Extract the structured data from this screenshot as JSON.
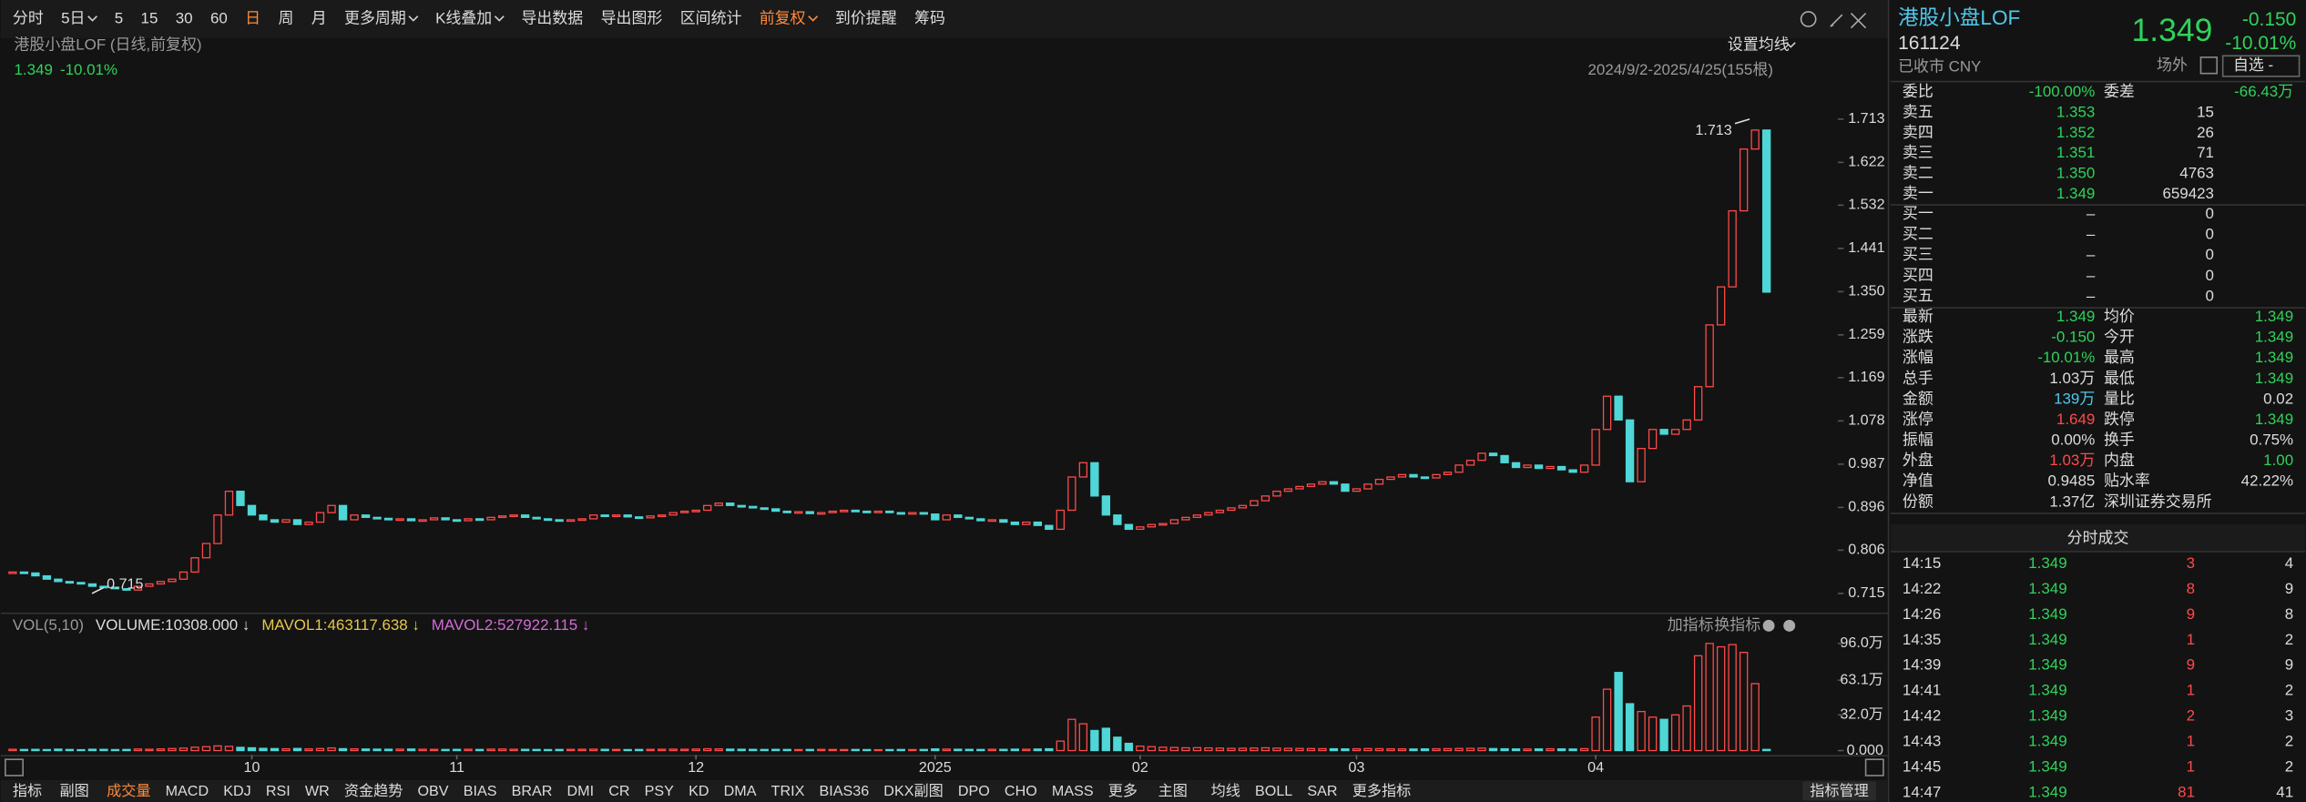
{
  "toolbar": {
    "items": [
      "分时",
      "5日",
      "5",
      "15",
      "30",
      "60",
      "日",
      "周",
      "月",
      "更多周期",
      "K线叠加",
      "导出数据",
      "导出图形",
      "区间统计",
      "前复权",
      "到价提醒",
      "筹码"
    ]
  },
  "chart_header": {
    "title": "港股小盘LOF (日线,前复权)",
    "price": "1.349",
    "change": "-10.01%",
    "ma_settings": "设置均线",
    "range": "2024/9/2-2025/4/25(155根)"
  },
  "chart_data": [
    {
      "type": "candlestick",
      "high_label": 1.713,
      "low_label": 0.715,
      "categories": [
        null,
        null,
        null,
        null,
        null,
        null,
        null,
        null,
        null,
        null,
        null,
        null,
        null,
        null,
        null,
        null,
        null,
        null,
        null,
        null,
        null,
        "10",
        null,
        null,
        null,
        null,
        null,
        null,
        null,
        null,
        null,
        null,
        null,
        null,
        null,
        null,
        null,
        null,
        null,
        "11",
        null,
        null,
        null,
        null,
        null,
        null,
        null,
        null,
        null,
        null,
        null,
        null,
        null,
        null,
        null,
        null,
        null,
        null,
        null,
        null,
        "12",
        null,
        null,
        null,
        null,
        null,
        null,
        null,
        null,
        null,
        null,
        null,
        null,
        null,
        null,
        null,
        null,
        null,
        null,
        null,
        null,
        "2025",
        null,
        null,
        null,
        null,
        null,
        null,
        null,
        null,
        null,
        null,
        null,
        null,
        null,
        null,
        null,
        null,
        null,
        "02",
        null,
        null,
        null,
        null,
        null,
        null,
        null,
        null,
        null,
        null,
        null,
        null,
        null,
        null,
        null,
        null,
        null,
        null,
        "03",
        null,
        null,
        null,
        null,
        null,
        null,
        null,
        null,
        null,
        null,
        null,
        null,
        null,
        null,
        null,
        null,
        null,
        null,
        null,
        null,
        "04",
        null,
        null,
        null,
        null,
        null,
        null,
        null,
        null,
        null,
        null,
        null,
        null,
        null,
        null,
        null
      ],
      "values": [
        0.76,
        0.758,
        0.752,
        0.745,
        0.74,
        0.738,
        0.735,
        0.73,
        0.728,
        0.725,
        0.722,
        0.73,
        0.735,
        0.74,
        0.745,
        0.76,
        0.79,
        0.82,
        0.88,
        0.93,
        0.9,
        0.88,
        0.87,
        0.865,
        0.87,
        0.86,
        0.865,
        0.885,
        0.9,
        0.87,
        0.88,
        0.875,
        0.873,
        0.87,
        0.872,
        0.868,
        0.87,
        0.874,
        0.87,
        0.868,
        0.872,
        0.87,
        0.875,
        0.878,
        0.88,
        0.875,
        0.872,
        0.87,
        0.868,
        0.87,
        0.872,
        0.88,
        0.878,
        0.88,
        0.876,
        0.874,
        0.878,
        0.88,
        0.885,
        0.888,
        0.89,
        0.9,
        0.905,
        0.9,
        0.898,
        0.895,
        0.893,
        0.888,
        0.885,
        0.887,
        0.883,
        0.885,
        0.888,
        0.89,
        0.888,
        0.886,
        0.888,
        0.885,
        0.884,
        0.885,
        0.882,
        0.87,
        0.88,
        0.875,
        0.872,
        0.868,
        0.87,
        0.865,
        0.86,
        0.865,
        0.858,
        0.85,
        0.89,
        0.96,
        0.99,
        0.92,
        0.88,
        0.86,
        0.85,
        0.855,
        0.86,
        0.862,
        0.87,
        0.875,
        0.88,
        0.885,
        0.89,
        0.895,
        0.9,
        0.91,
        0.92,
        0.93,
        0.935,
        0.94,
        0.945,
        0.95,
        0.945,
        0.93,
        0.935,
        0.945,
        0.955,
        0.96,
        0.965,
        0.96,
        0.958,
        0.965,
        0.97,
        0.985,
        0.995,
        1.01,
        1.005,
        0.99,
        0.98,
        0.985,
        0.978,
        0.982,
        0.975,
        0.97,
        0.985,
        1.06,
        1.13,
        1.08,
        0.95,
        1.02,
        1.06,
        1.05,
        1.06,
        1.08,
        1.15,
        1.28,
        1.36,
        1.52,
        1.65,
        1.69,
        1.349
      ],
      "ylim": [
        0.681,
        1.772
      ],
      "yticks": [
        0.715,
        0.806,
        0.896,
        0.987,
        1.078,
        1.169,
        1.259,
        {
          "value": 1.35,
          "label": "1.350"
        },
        1.441,
        1.532,
        1.622,
        1.713
      ]
    },
    {
      "type": "bar",
      "title": "VOL(5,10)",
      "legend": [
        "VOLUME:10308.000 ↓",
        "MAVOL1:463117.638 ↓",
        "MAVOL2:527922.115 ↓"
      ],
      "values": [
        1.2,
        1.0,
        1.1,
        0.9,
        1.3,
        1.0,
        0.8,
        1.2,
        1.1,
        0.9,
        1.0,
        1.4,
        1.2,
        1.5,
        1.8,
        2.2,
        3.0,
        3.5,
        4.2,
        3.8,
        2.9,
        2.5,
        2.0,
        1.8,
        1.6,
        1.9,
        1.5,
        1.8,
        2.4,
        1.7,
        1.5,
        1.4,
        1.3,
        1.2,
        1.3,
        1.4,
        1.2,
        1.1,
        1.0,
        1.1,
        1.2,
        1.0,
        1.3,
        1.4,
        1.2,
        1.1,
        1.0,
        0.9,
        1.0,
        1.1,
        1.2,
        1.3,
        1.1,
        1.0,
        0.9,
        1.0,
        1.1,
        1.2,
        1.3,
        1.2,
        1.4,
        1.6,
        1.5,
        1.3,
        1.2,
        1.1,
        1.0,
        1.1,
        1.0,
        0.9,
        1.0,
        1.1,
        1.0,
        0.9,
        1.0,
        0.9,
        0.8,
        0.9,
        1.0,
        0.9,
        1.0,
        1.5,
        1.3,
        1.2,
        1.1,
        1.0,
        1.2,
        1.1,
        1.3,
        1.2,
        1.4,
        1.6,
        8.5,
        28.0,
        24.0,
        18.0,
        20.0,
        12.0,
        6.5,
        4.0,
        3.5,
        3.0,
        2.8,
        2.5,
        2.6,
        2.4,
        2.2,
        2.0,
        2.1,
        2.3,
        2.5,
        2.2,
        2.0,
        1.9,
        1.8,
        1.7,
        1.6,
        1.5,
        1.6,
        1.8,
        1.7,
        1.6,
        1.5,
        1.4,
        1.5,
        1.6,
        1.7,
        1.9,
        2.0,
        2.2,
        1.8,
        1.6,
        1.5,
        1.4,
        1.5,
        1.6,
        1.5,
        1.4,
        1.7,
        30,
        55,
        70,
        42,
        35,
        30,
        28,
        32,
        40,
        85,
        96,
        93,
        95,
        88,
        60,
        1.03
      ],
      "ylim": [
        0,
        104
      ],
      "yticks": [
        {
          "value": 0,
          "label": "0.000"
        },
        {
          "value": 32.0,
          "label": "32.0万"
        },
        {
          "value": 63.1,
          "label": "63.1万"
        },
        {
          "value": 96.0,
          "label": "96.0万"
        }
      ]
    }
  ],
  "volume_actions": [
    "加指标",
    "换指标"
  ],
  "indicator_bar": {
    "items": [
      "指标",
      "副图",
      "成交量",
      "MACD",
      "KDJ",
      "RSI",
      "WR",
      "资金趋势",
      "OBV",
      "BIAS",
      "BRAR",
      "DMI",
      "CR",
      "PSY",
      "KD",
      "DMA",
      "TRIX",
      "BIAS36",
      "DKX副图",
      "DPO",
      "CHO",
      "MASS",
      "更多"
    ],
    "main_items": [
      "主图",
      "均线",
      "BOLL",
      "SAR",
      "更多指标"
    ],
    "manage": "指标管理"
  },
  "quote": {
    "name": "港股小盘LOF",
    "code": "161124",
    "status": "已收市 CNY",
    "price": "1.349",
    "change": "-0.150",
    "change_pct": "-10.01%",
    "market": "场外",
    "watchlist": "自选 -"
  },
  "order_book": {
    "ratio": [
      "委比",
      "-100.00%",
      "委差",
      "-66.43万"
    ],
    "asks": [
      [
        "卖五",
        "1.353",
        "15"
      ],
      [
        "卖四",
        "1.352",
        "26"
      ],
      [
        "卖三",
        "1.351",
        "71"
      ],
      [
        "卖二",
        "1.350",
        "4763"
      ],
      [
        "卖一",
        "1.349",
        "659423"
      ]
    ],
    "bids": [
      [
        "买一",
        "–",
        "0"
      ],
      [
        "买二",
        "–",
        "0"
      ],
      [
        "买三",
        "–",
        "0"
      ],
      [
        "买四",
        "–",
        "0"
      ],
      [
        "买五",
        "–",
        "0"
      ]
    ]
  },
  "stats": [
    [
      "最新",
      "1.349",
      "均价",
      "1.349"
    ],
    [
      "涨跌",
      "-0.150",
      "今开",
      "1.349"
    ],
    [
      "涨幅",
      "-10.01%",
      "最高",
      "1.349"
    ],
    [
      "总手",
      "1.03万",
      "最低",
      "1.349"
    ],
    [
      "金额",
      "139万",
      "量比",
      "0.02"
    ],
    [
      "涨停",
      "1.649",
      "跌停",
      "1.349"
    ],
    [
      "振幅",
      "0.00%",
      "换手",
      "0.75%"
    ],
    [
      "外盘",
      "1.03万",
      "内盘",
      "1.00"
    ],
    [
      "净值",
      "0.9485",
      "贴水率",
      "42.22%"
    ],
    [
      "份额",
      "1.37亿",
      "深圳证券交易所",
      ""
    ]
  ],
  "trades": {
    "title": "分时成交",
    "rows": [
      [
        "14:15",
        "1.349",
        "3",
        "4"
      ],
      [
        "14:22",
        "1.349",
        "8",
        "9"
      ],
      [
        "14:26",
        "1.349",
        "9",
        "8"
      ],
      [
        "14:35",
        "1.349",
        "1",
        "2"
      ],
      [
        "14:39",
        "1.349",
        "9",
        "9"
      ],
      [
        "14:41",
        "1.349",
        "1",
        "2"
      ],
      [
        "14:42",
        "1.349",
        "2",
        "3"
      ],
      [
        "14:43",
        "1.349",
        "1",
        "2"
      ],
      [
        "14:45",
        "1.349",
        "1",
        "2"
      ],
      [
        "14:47",
        "1.349",
        "81",
        "41"
      ]
    ]
  }
}
